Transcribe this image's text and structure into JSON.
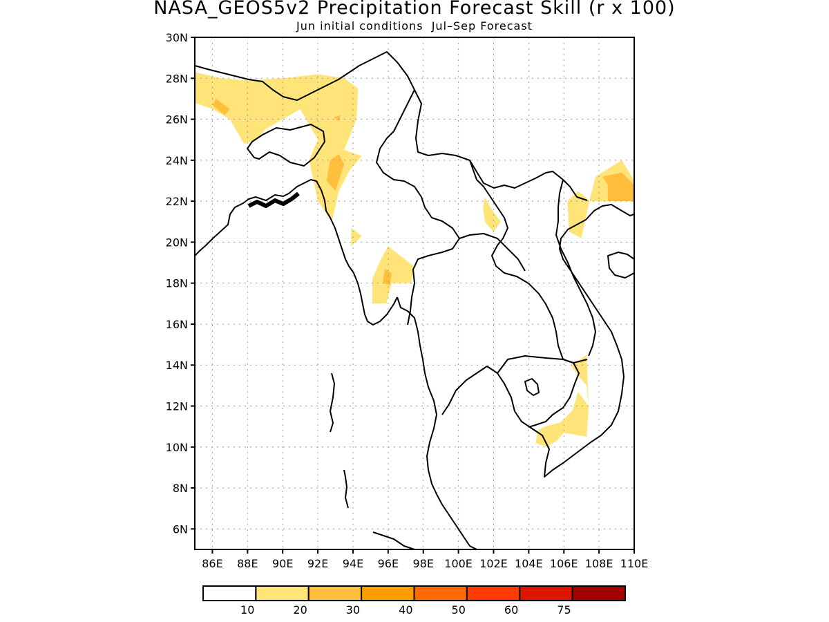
{
  "title": "NASA_GEOS5v2 Precipitation Forecast Skill (r x 100)",
  "subtitle": "Jun initial conditions  Jul–Sep Forecast",
  "map": {
    "lon_range": [
      85,
      110
    ],
    "lat_range": [
      5,
      30
    ],
    "x_ticks": [
      "86E",
      "88E",
      "90E",
      "92E",
      "94E",
      "96E",
      "98E",
      "100E",
      "102E",
      "104E",
      "106E",
      "108E",
      "110E"
    ],
    "y_ticks": [
      "6N",
      "8N",
      "10N",
      "12N",
      "14N",
      "16N",
      "18N",
      "20N",
      "22N",
      "24N",
      "26N",
      "28N",
      "30N"
    ],
    "grid": "dotted"
  },
  "colorbar": {
    "colors": [
      "#ffffff",
      "#ffe47a",
      "#ffbe3c",
      "#ff9d00",
      "#ff6a00",
      "#ff3c00",
      "#dd1600",
      "#a30000"
    ],
    "labels": [
      "10",
      "20",
      "30",
      "40",
      "50",
      "60",
      "75"
    ]
  },
  "skill_regions": [
    {
      "level": 10,
      "color": "#ffe47a",
      "lonlat": [
        [
          85,
          28.3
        ],
        [
          86.5,
          28
        ],
        [
          88,
          27.9
        ],
        [
          90,
          28
        ],
        [
          92,
          28.2
        ],
        [
          93.5,
          28
        ],
        [
          94.3,
          27.5
        ],
        [
          94.2,
          26
        ],
        [
          93.5,
          24.5
        ],
        [
          94.5,
          24.2
        ],
        [
          93.8,
          23.5
        ],
        [
          93.2,
          22.5
        ],
        [
          92.8,
          21
        ],
        [
          92,
          22
        ],
        [
          91.5,
          24
        ],
        [
          92,
          25
        ],
        [
          91,
          26.5
        ],
        [
          90,
          26
        ],
        [
          89,
          25.5
        ],
        [
          88.5,
          25
        ],
        [
          87.8,
          24.8
        ],
        [
          87,
          26
        ],
        [
          86,
          26.5
        ],
        [
          85,
          26.8
        ]
      ]
    },
    {
      "level": 10,
      "color": "#ffe47a",
      "lonlat": [
        [
          93.9,
          20.7
        ],
        [
          94.5,
          20.3
        ],
        [
          93.9,
          19.8
        ]
      ]
    },
    {
      "level": 10,
      "color": "#ffe47a",
      "lonlat": [
        [
          96,
          19.8
        ],
        [
          97.5,
          18.8
        ],
        [
          97.3,
          18
        ],
        [
          96.2,
          18
        ],
        [
          95.9,
          17
        ],
        [
          95.1,
          17
        ],
        [
          95.1,
          18.2
        ],
        [
          95.5,
          19
        ]
      ]
    },
    {
      "level": 10,
      "color": "#ffe47a",
      "lonlat": [
        [
          101.5,
          22.2
        ],
        [
          101.9,
          21.6
        ],
        [
          102.4,
          21
        ],
        [
          102,
          20.5
        ],
        [
          101.5,
          21
        ],
        [
          101.4,
          21.7
        ]
      ]
    },
    {
      "level": 10,
      "color": "#ffe47a",
      "lonlat": [
        [
          106.8,
          22.5
        ],
        [
          106.2,
          22
        ],
        [
          106.3,
          20.5
        ],
        [
          107,
          20.2
        ],
        [
          107.5,
          22.2
        ],
        [
          107.8,
          23.2
        ],
        [
          109.3,
          24
        ],
        [
          110,
          23
        ],
        [
          110,
          22
        ],
        [
          107.5,
          22
        ]
      ]
    },
    {
      "level": 10,
      "color": "#ffe47a",
      "lonlat": [
        [
          106.8,
          14.2
        ],
        [
          107.3,
          14.5
        ],
        [
          107.4,
          12
        ],
        [
          106.8,
          12.7
        ],
        [
          106.5,
          11.8
        ],
        [
          105.8,
          11.2
        ],
        [
          104.9,
          11
        ],
        [
          104.5,
          10.8
        ],
        [
          104.4,
          10.2
        ],
        [
          105,
          10
        ],
        [
          105.6,
          10.3
        ],
        [
          106,
          10.7
        ],
        [
          107.3,
          10.5
        ],
        [
          107.4,
          11.9
        ],
        [
          107.3,
          13
        ],
        [
          106.8,
          13.5
        ],
        [
          106.4,
          14
        ]
      ]
    },
    {
      "level": 20,
      "color": "#ffbe3c",
      "lonlat": [
        [
          86.2,
          27
        ],
        [
          87,
          26.5
        ],
        [
          86.7,
          26.2
        ],
        [
          86,
          26.7
        ]
      ]
    },
    {
      "level": 20,
      "color": "#ffbe3c",
      "lonlat": [
        [
          92.9,
          26.1
        ],
        [
          93.3,
          26.2
        ],
        [
          93.2,
          25.9
        ]
      ]
    },
    {
      "level": 20,
      "color": "#ffbe3c",
      "lonlat": [
        [
          92.7,
          24
        ],
        [
          93.2,
          24.3
        ],
        [
          93.5,
          23.8
        ],
        [
          93,
          22.5
        ],
        [
          92.5,
          23
        ]
      ]
    },
    {
      "level": 20,
      "color": "#ffbe3c",
      "lonlat": [
        [
          95.8,
          18.7
        ],
        [
          96.2,
          18.5
        ],
        [
          96.1,
          17.9
        ],
        [
          95.7,
          18
        ]
      ]
    },
    {
      "level": 20,
      "color": "#ffbe3c",
      "lonlat": [
        [
          108.5,
          22.8
        ],
        [
          108.2,
          23.2
        ],
        [
          109.3,
          23.4
        ],
        [
          110,
          22.8
        ],
        [
          110,
          22
        ],
        [
          108.5,
          22
        ]
      ]
    }
  ]
}
